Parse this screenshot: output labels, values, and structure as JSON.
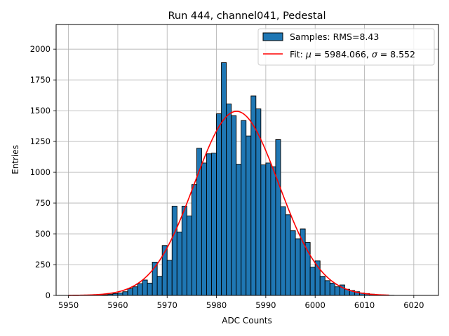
{
  "chart_data": {
    "type": "histogram",
    "title": "Run 444, channel041, Pedestal",
    "xlabel": "ADC Counts",
    "ylabel": "Entries",
    "xlim": [
      5947.5,
      6025
    ],
    "ylim": [
      0,
      2200
    ],
    "xticks": [
      5950,
      5960,
      5970,
      5980,
      5990,
      6000,
      6010,
      6020
    ],
    "yticks": [
      0,
      250,
      500,
      750,
      1000,
      1250,
      1500,
      1750,
      2000
    ],
    "grid": true,
    "legend_position": "top-right",
    "bin_width": 1,
    "series": [
      {
        "name": "Samples: RMS=8.43",
        "kind": "histogram",
        "color": "#1f77b4",
        "edgecolor": "#000000",
        "bin_starts": [
          5955,
          5956,
          5957,
          5958,
          5959,
          5960,
          5961,
          5962,
          5963,
          5964,
          5965,
          5966,
          5967,
          5968,
          5969,
          5970,
          5971,
          5972,
          5973,
          5974,
          5975,
          5976,
          5977,
          5978,
          5979,
          5980,
          5981,
          5982,
          5983,
          5984,
          5985,
          5986,
          5987,
          5988,
          5989,
          5990,
          5991,
          5992,
          5993,
          5994,
          5995,
          5996,
          5997,
          5998,
          5999,
          6000,
          6001,
          6002,
          6003,
          6004,
          6005,
          6006,
          6007,
          6008,
          6009,
          6010,
          6011,
          6012,
          6013,
          6014,
          6015
        ],
        "values": [
          2,
          3,
          5,
          10,
          15,
          20,
          30,
          55,
          70,
          95,
          125,
          100,
          270,
          155,
          405,
          285,
          725,
          515,
          725,
          645,
          900,
          1195,
          1075,
          1150,
          1155,
          1475,
          1890,
          1555,
          1460,
          1065,
          1420,
          1295,
          1620,
          1515,
          1060,
          1075,
          1045,
          1265,
          720,
          655,
          525,
          460,
          540,
          430,
          230,
          280,
          155,
          120,
          100,
          70,
          85,
          50,
          40,
          30,
          20,
          15,
          10,
          6,
          4,
          2,
          1
        ]
      },
      {
        "name": "Fit: μ = 5984.066, σ = 8.552",
        "kind": "gaussian",
        "color": "#ff0000",
        "mu": 5984.066,
        "sigma": 8.552,
        "amplitude": 1495,
        "x_range": [
          5950,
          6015
        ]
      }
    ],
    "legend": {
      "hist_label_a": "Samples: RMS=8.43",
      "fit_label_prefix": "Fit: ",
      "fit_mu_symbol": "μ",
      "fit_mu_text": " = 5984.066, ",
      "fit_sigma_symbol": "σ",
      "fit_sigma_text": " = 8.552"
    }
  }
}
